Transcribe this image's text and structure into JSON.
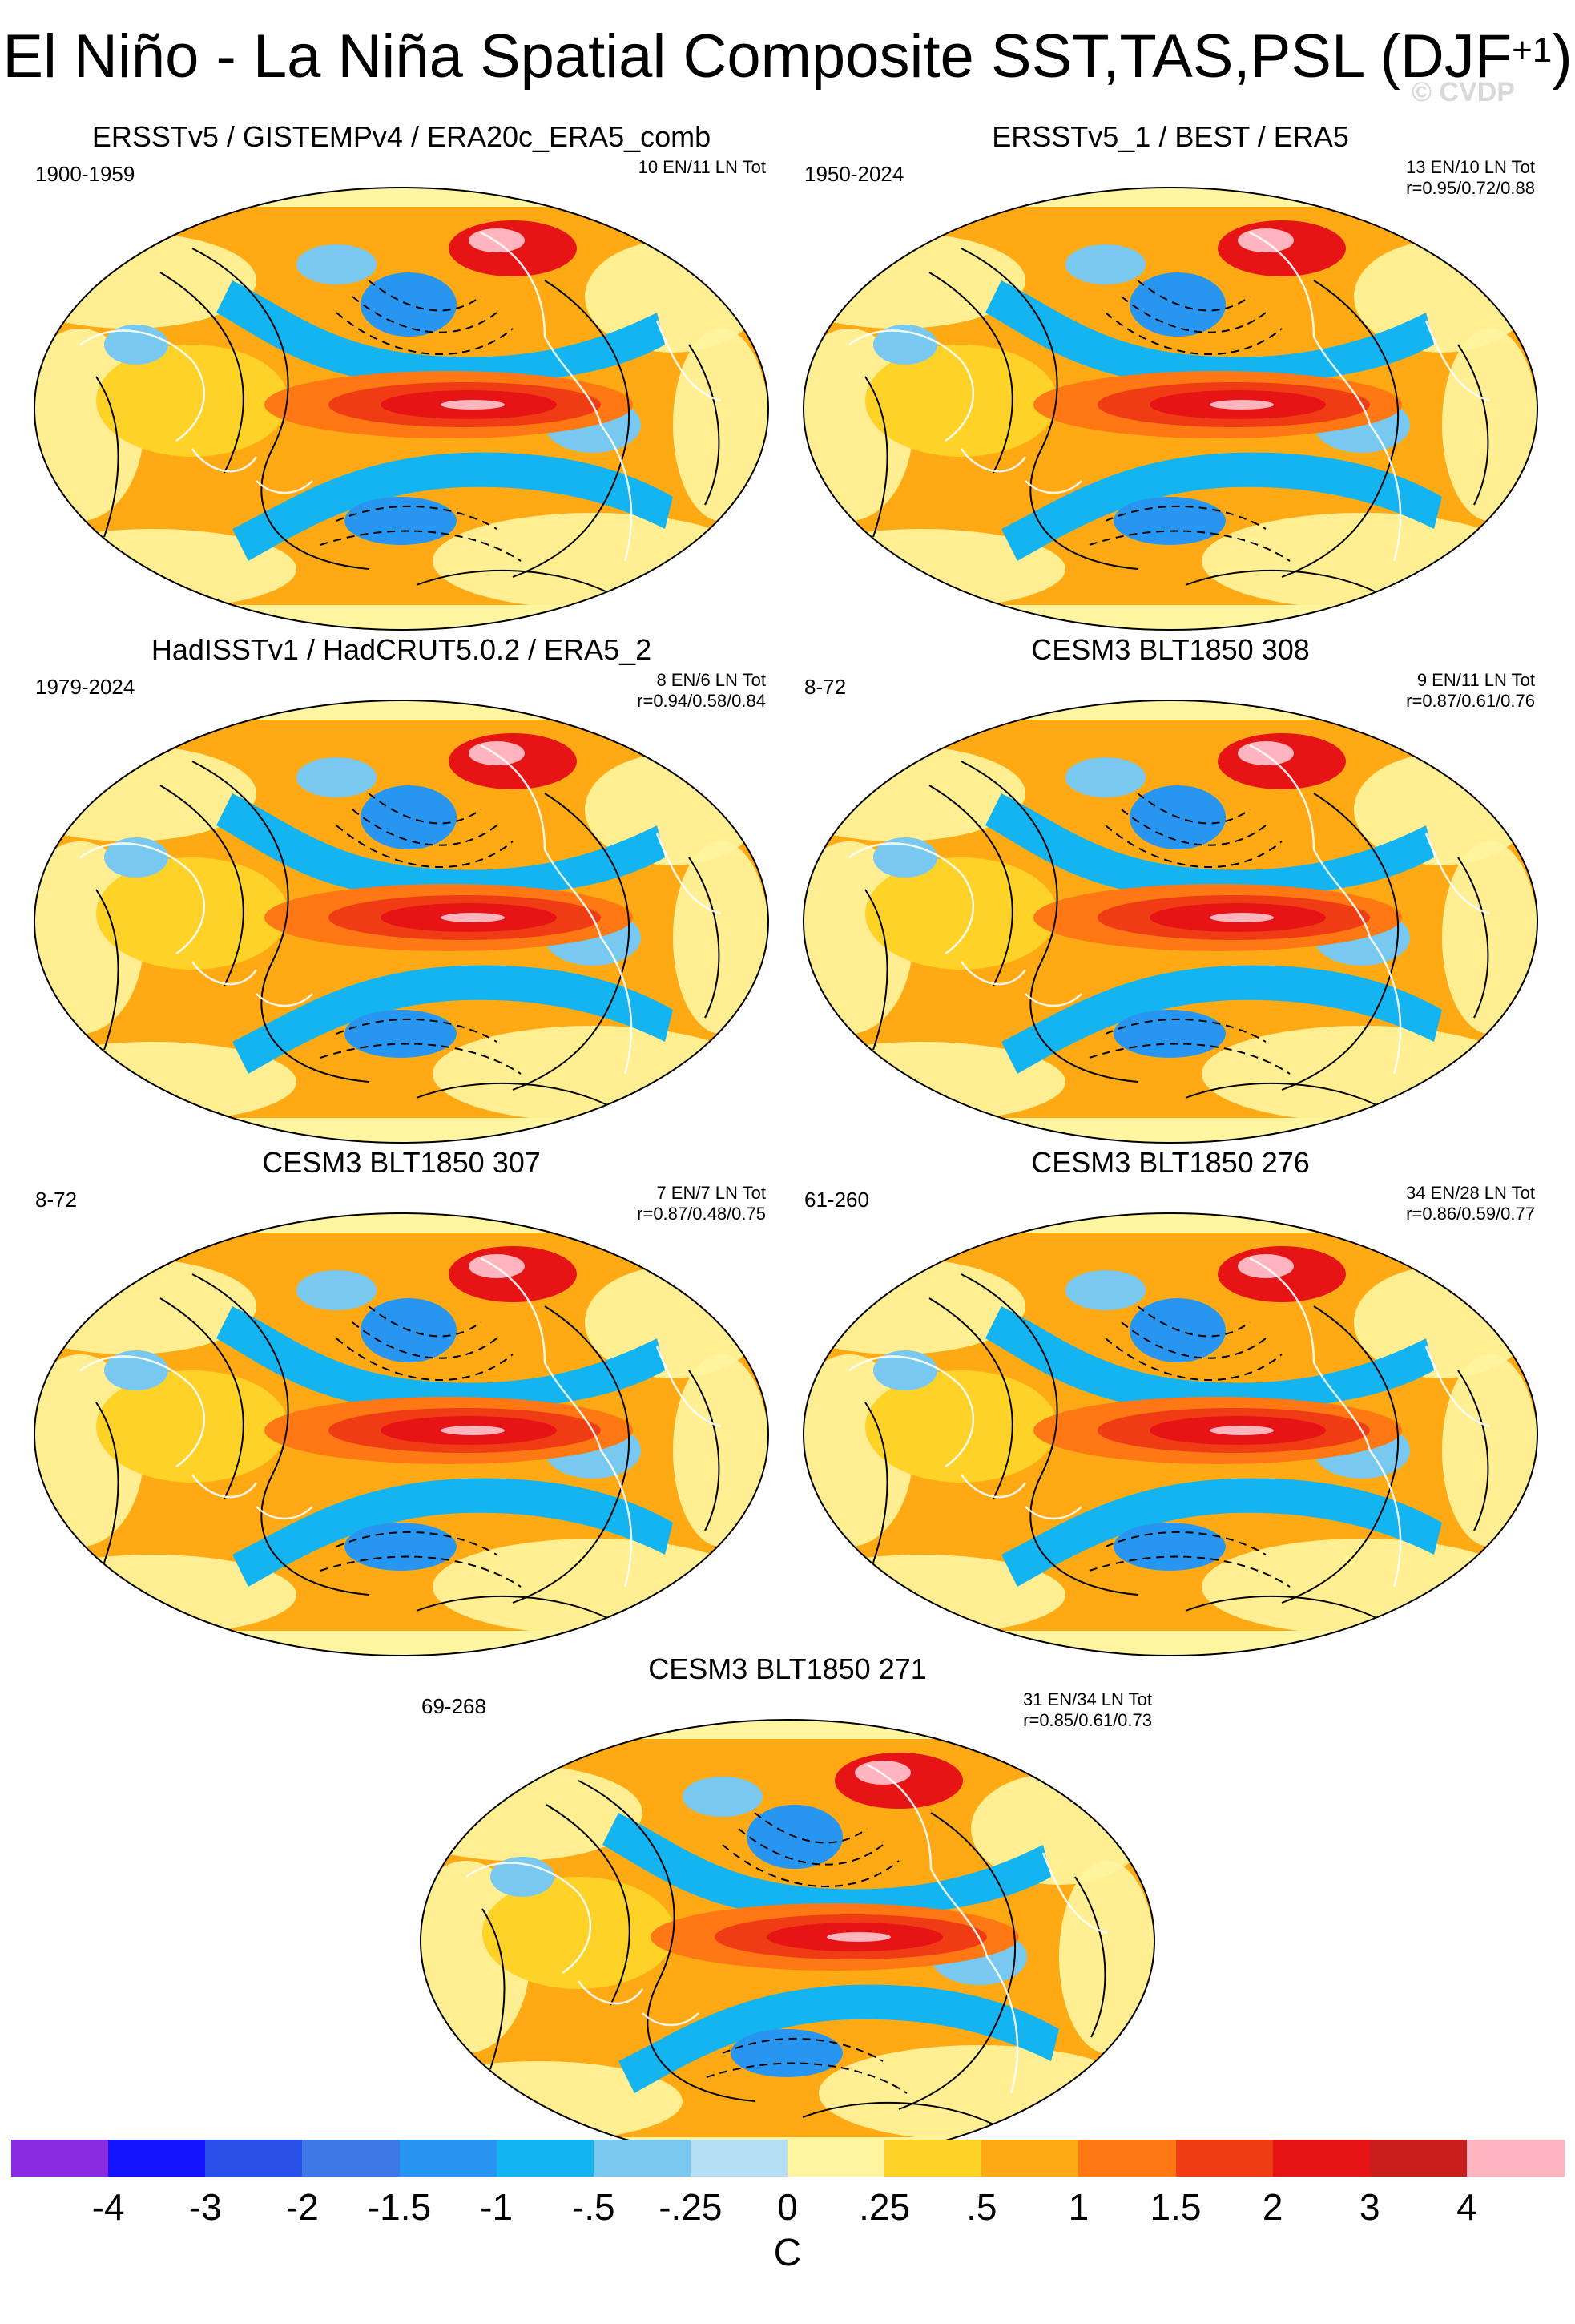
{
  "title_main": "El Niño - La Niña Spatial Composite SST,TAS,PSL (DJF",
  "title_sup": "+1",
  "title_tail": ")",
  "watermark": "© CVDP",
  "panels": [
    {
      "title": "ERSSTv5 / GISTEMPv4 / ERA20c_ERA5_comb",
      "years": "1900-1959",
      "counts": "10 EN/11 LN Tot",
      "corr": ""
    },
    {
      "title": "ERSSTv5_1 / BEST / ERA5",
      "years": "1950-2024",
      "counts": "13 EN/10 LN Tot",
      "corr": "r=0.95/0.72/0.88"
    },
    {
      "title": "HadISSTv1 / HadCRUT5.0.2 / ERA5_2",
      "years": "1979-2024",
      "counts": "8 EN/6 LN Tot",
      "corr": "r=0.94/0.58/0.84"
    },
    {
      "title": "CESM3 BLT1850 308",
      "years": "8-72",
      "counts": "9 EN/11 LN Tot",
      "corr": "r=0.87/0.61/0.76"
    },
    {
      "title": "CESM3 BLT1850 307",
      "years": "8-72",
      "counts": "7 EN/7 LN Tot",
      "corr": "r=0.87/0.48/0.75"
    },
    {
      "title": "CESM3 BLT1850 276",
      "years": "61-260",
      "counts": "34 EN/28 LN Tot",
      "corr": "r=0.86/0.59/0.77"
    },
    {
      "title": "CESM3 BLT1850 271",
      "years": "69-268",
      "counts": "31 EN/34 LN Tot",
      "corr": "r=0.85/0.61/0.73"
    }
  ],
  "chart_data": {
    "type": "heatmap",
    "projection": "global Robinson-style map composites",
    "variables": [
      "SST",
      "TAS",
      "PSL"
    ],
    "season": "DJF+1",
    "colorbar": {
      "units": "C",
      "labels": [
        "-4",
        "-3",
        "-2",
        "-1.5",
        "-1",
        "-.5",
        "-.25",
        "0",
        ".25",
        ".5",
        "1",
        "1.5",
        "2",
        "3",
        "4"
      ],
      "colors": [
        "#8a2be2",
        "#1414ff",
        "#2850e6",
        "#3c78e6",
        "#2896f0",
        "#14b4f0",
        "#78c8f0",
        "#b4def4",
        "#fff5a0",
        "#ffd228",
        "#ffaa14",
        "#ff7814",
        "#f03c14",
        "#e61414",
        "#c81e1e",
        "#ffb4be"
      ]
    }
  }
}
